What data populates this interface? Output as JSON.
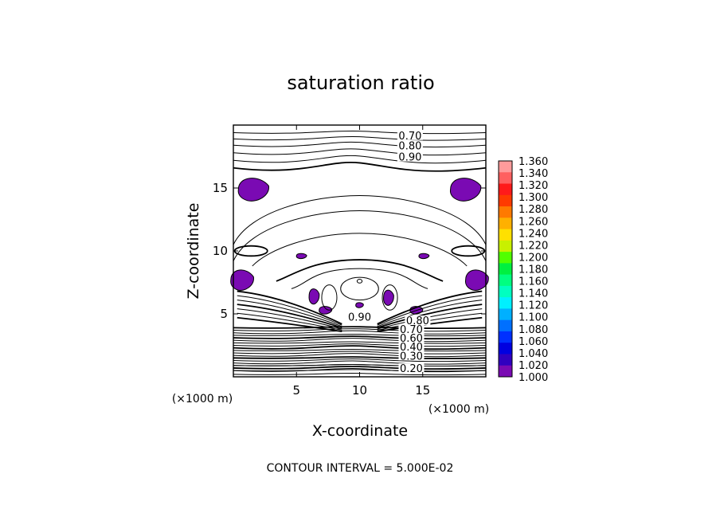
{
  "chart_data": {
    "type": "contour",
    "title": "saturation ratio",
    "xlabel": "X-coordinate",
    "ylabel": "Z-coordinate",
    "x_unit": "(×1000 m)",
    "y_unit": "(×1000 m)",
    "xlim": [
      0,
      20
    ],
    "ylim": [
      0,
      20
    ],
    "xticks": [
      "5",
      "10",
      "15"
    ],
    "yticks": [
      "5",
      "10",
      "15"
    ],
    "contour_interval_text": "CONTOUR INTERVAL = 5.000E-02",
    "contour_labels": [
      {
        "text": "0.70",
        "x": 14.0,
        "z": 19.0
      },
      {
        "text": "0.80",
        "x": 14.0,
        "z": 18.2
      },
      {
        "text": "0.90",
        "x": 14.0,
        "z": 17.3
      },
      {
        "text": "0.90",
        "x": 10.0,
        "z": 4.6
      },
      {
        "text": "0.80",
        "x": 14.6,
        "z": 4.3
      },
      {
        "text": "0.70",
        "x": 14.1,
        "z": 3.6
      },
      {
        "text": "0.60",
        "x": 14.1,
        "z": 2.9
      },
      {
        "text": "0.40",
        "x": 14.1,
        "z": 2.2
      },
      {
        "text": "0.30",
        "x": 14.1,
        "z": 1.5
      },
      {
        "text": "0.20",
        "x": 14.1,
        "z": 0.5
      }
    ],
    "shaded_regions": [
      {
        "x": 1.6,
        "z": 14.9,
        "rx": 1.2,
        "rz": 0.9
      },
      {
        "x": 18.4,
        "z": 14.9,
        "rx": 1.2,
        "rz": 0.9
      },
      {
        "x": 0.7,
        "z": 7.7,
        "rx": 0.9,
        "rz": 0.8
      },
      {
        "x": 19.3,
        "z": 7.7,
        "rx": 0.9,
        "rz": 0.8
      },
      {
        "x": 6.4,
        "z": 6.4,
        "rx": 0.4,
        "rz": 0.6
      },
      {
        "x": 12.3,
        "z": 6.3,
        "rx": 0.4,
        "rz": 0.6
      },
      {
        "x": 5.4,
        "z": 9.6,
        "rx": 0.4,
        "rz": 0.2
      },
      {
        "x": 15.1,
        "z": 9.6,
        "rx": 0.4,
        "rz": 0.2
      },
      {
        "x": 7.3,
        "z": 5.3,
        "rx": 0.5,
        "rz": 0.3
      },
      {
        "x": 14.5,
        "z": 5.3,
        "rx": 0.5,
        "rz": 0.3
      },
      {
        "x": 10.0,
        "z": 5.7,
        "rx": 0.3,
        "rz": 0.2
      }
    ],
    "colorbar": {
      "min": 1.0,
      "max": 1.36,
      "step": 0.02,
      "labels": [
        "1.360",
        "1.340",
        "1.320",
        "1.300",
        "1.280",
        "1.260",
        "1.240",
        "1.220",
        "1.200",
        "1.180",
        "1.160",
        "1.140",
        "1.120",
        "1.100",
        "1.080",
        "1.060",
        "1.040",
        "1.020",
        "1.000"
      ],
      "colors": [
        "#ff9b9b",
        "#ff6060",
        "#ff1a1a",
        "#ff3a00",
        "#ff7a00",
        "#ffb000",
        "#ffe000",
        "#c8f000",
        "#50ff00",
        "#00f040",
        "#00ff80",
        "#00ffc0",
        "#00f0ff",
        "#00b0ff",
        "#0070ff",
        "#0030ff",
        "#0000e0",
        "#3000c0",
        "#7a0ab3"
      ]
    },
    "grid": false,
    "legend_placement": "right"
  }
}
